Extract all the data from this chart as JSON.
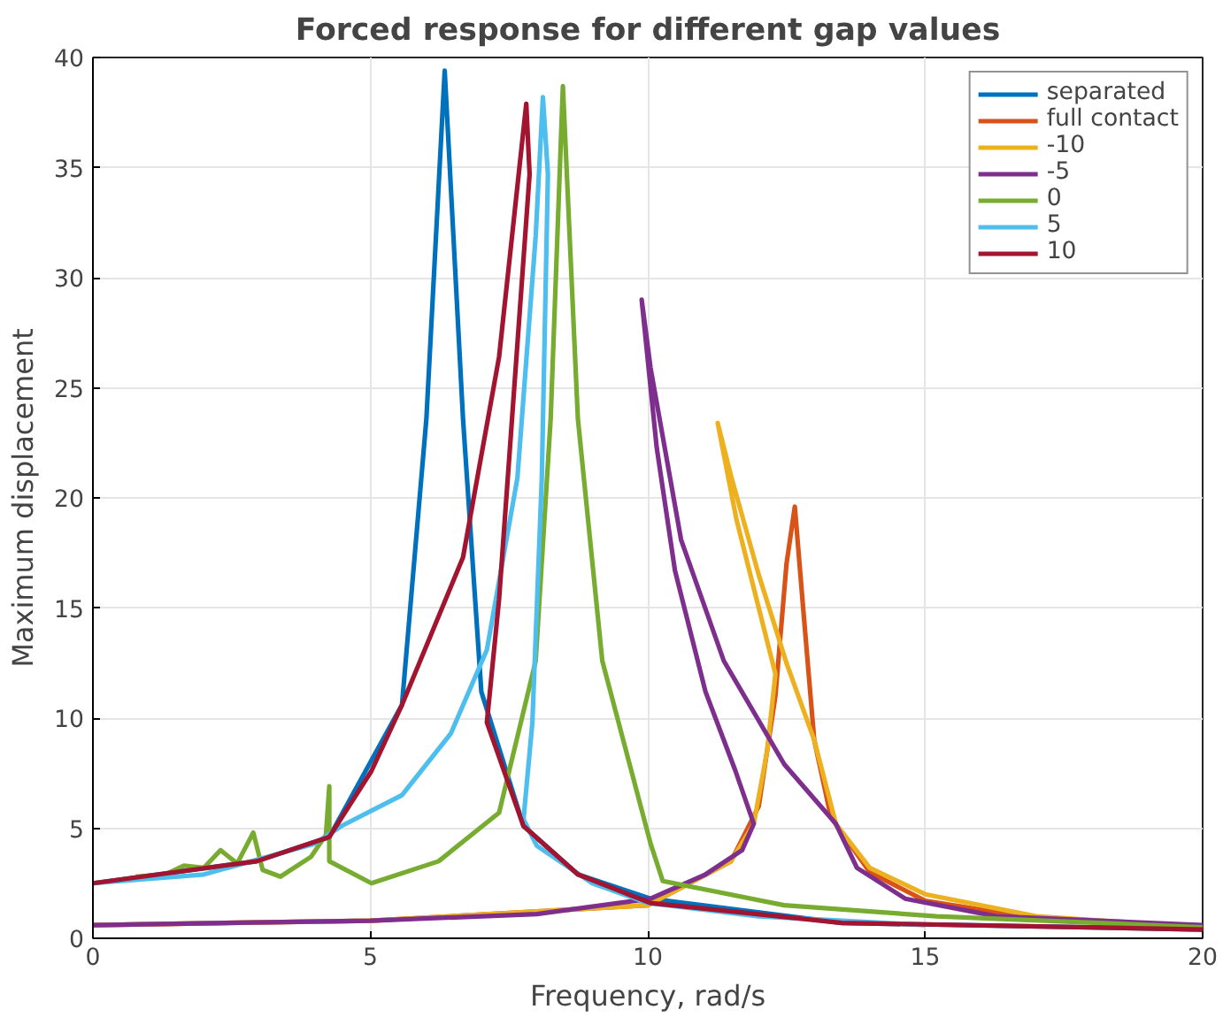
{
  "chart_data": {
    "type": "line",
    "title": "Forced response for different gap values",
    "xlabel": "Frequency, rad/s",
    "ylabel": "Maximum displacement",
    "xlim": [
      0,
      20
    ],
    "ylim": [
      0,
      40
    ],
    "xticks": [
      0,
      5,
      10,
      15,
      20
    ],
    "yticks": [
      0,
      5,
      10,
      15,
      20,
      25,
      30,
      35,
      40
    ],
    "grid": true,
    "legend": "top right",
    "line_style": "solid",
    "series": [
      {
        "name": "separated",
        "color": "#0072bd",
        "x": [
          0,
          2.95,
          4.26,
          5.57,
          6.01,
          6.34,
          6.67,
          7.0,
          7.76,
          8.74,
          10.05,
          13.5,
          20
        ],
        "values": [
          2.5,
          3.5,
          4.6,
          10.6,
          23.6,
          39.4,
          23.6,
          11.2,
          5.1,
          2.9,
          1.8,
          0.7,
          0.4
        ]
      },
      {
        "name": "full contact",
        "color": "#d95319",
        "x": [
          0,
          5,
          10,
          11.5,
          12.0,
          12.3,
          12.5,
          12.65,
          12.8,
          13.0,
          13.3,
          14,
          15,
          17,
          20
        ],
        "values": [
          0.6,
          0.8,
          1.5,
          3.5,
          6,
          11,
          17,
          19.6,
          15,
          9,
          5.5,
          3,
          1.7,
          0.9,
          0.5
        ]
      },
      {
        "name": "-10",
        "color": "#edb120",
        "x": [
          0,
          5,
          10,
          11.5,
          11.91,
          12.15,
          12.3,
          12.0,
          11.6,
          11.26,
          11.5,
          12.0,
          12.5,
          13.0,
          13.39,
          14,
          15,
          17,
          20
        ],
        "values": [
          0.6,
          0.8,
          1.5,
          3.5,
          5.2,
          8.5,
          12,
          15,
          19,
          23.4,
          21,
          16.5,
          12.5,
          9,
          5.2,
          3.2,
          2,
          1,
          0.5
        ]
      },
      {
        "name": "-5",
        "color": "#7e2f8e",
        "x": [
          0,
          5,
          8,
          10.05,
          11.04,
          11.7,
          11.91,
          11.58,
          11.04,
          10.49,
          10.16,
          9.89,
          10.05,
          10.6,
          11.37,
          12.46,
          13.39,
          13.77,
          14.64,
          16.28,
          20
        ],
        "values": [
          0.6,
          0.8,
          1.1,
          1.8,
          2.9,
          4.0,
          5.2,
          7.6,
          11.2,
          16.7,
          22.3,
          29.0,
          25.9,
          18.1,
          12.6,
          7.9,
          5.2,
          3.2,
          1.8,
          1.0,
          0.6
        ]
      },
      {
        "name": "0",
        "color": "#77ac30",
        "x": [
          0.77,
          1.3,
          1.64,
          2.0,
          2.3,
          2.6,
          2.89,
          3.06,
          3.38,
          3.93,
          4.2,
          4.26,
          4.26,
          5.02,
          6.23,
          7.32,
          7.98,
          8.25,
          8.47,
          8.74,
          9.18,
          10.05,
          10.27,
          12.46,
          15.2,
          20
        ],
        "values": [
          2.8,
          2.9,
          3.3,
          3.2,
          4.0,
          3.4,
          4.8,
          3.1,
          2.8,
          3.7,
          4.7,
          6.9,
          3.5,
          2.5,
          3.5,
          5.7,
          12.6,
          23.6,
          38.7,
          23.6,
          12.6,
          4.3,
          2.6,
          1.5,
          1.0,
          0.5
        ]
      },
      {
        "name": "5",
        "color": "#4dbeee",
        "x": [
          0,
          2,
          4,
          4.48,
          5.57,
          6.45,
          7.1,
          7.65,
          7.98,
          8.11,
          8.2,
          8.09,
          7.92,
          7.76,
          8,
          9,
          10,
          12,
          15
        ],
        "values": [
          2.5,
          2.9,
          4.3,
          5.1,
          6.5,
          9.3,
          13.1,
          20.9,
          31.9,
          38.2,
          34.7,
          20.9,
          9.8,
          5.4,
          4.2,
          2.5,
          1.6,
          1.0,
          0.6
        ]
      },
      {
        "name": "10",
        "color": "#a2142f",
        "x": [
          0,
          2.95,
          4.26,
          5.02,
          5.57,
          6.67,
          7.32,
          7.81,
          7.87,
          7.32,
          7.1,
          7.76,
          8.74,
          10.05,
          13.5,
          20
        ],
        "values": [
          2.5,
          3.5,
          4.6,
          7.6,
          10.6,
          17.3,
          26.4,
          37.9,
          34.7,
          15.4,
          9.8,
          5.1,
          2.9,
          1.6,
          0.7,
          0.4
        ]
      }
    ]
  }
}
